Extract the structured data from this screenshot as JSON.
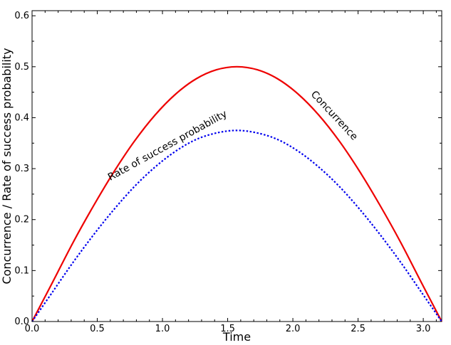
{
  "chart_data": {
    "type": "line",
    "title": "",
    "xlabel": "Time",
    "ylabel": "Concurrence / Rate of success probability",
    "xlim": [
      0,
      3.14159
    ],
    "ylim": [
      0,
      0.61
    ],
    "xticks": [
      "0.0",
      "0.5",
      "1.0",
      "1.5",
      "2.0",
      "2.5",
      "3.0"
    ],
    "yticks": [
      "0.0",
      "0.1",
      "0.2",
      "0.3",
      "0.4",
      "0.5",
      "0.6"
    ],
    "grid": false,
    "legend": "none",
    "series": [
      {
        "name": "Concurrence",
        "color": "#ee0000",
        "style": "solid",
        "x": [
          0,
          0.1571,
          0.3142,
          0.4712,
          0.6283,
          0.7854,
          0.9425,
          1.0996,
          1.2566,
          1.4137,
          1.5708,
          1.7279,
          1.885,
          2.042,
          2.1991,
          2.3562,
          2.5133,
          2.6704,
          2.8274,
          2.9845,
          3.1416
        ],
        "values": [
          0,
          0.077,
          0.155,
          0.227,
          0.294,
          0.354,
          0.405,
          0.446,
          0.476,
          0.494,
          0.5,
          0.494,
          0.476,
          0.446,
          0.405,
          0.354,
          0.294,
          0.227,
          0.155,
          0.077,
          0
        ]
      },
      {
        "name": "Rate of success probability",
        "color": "#0000ee",
        "style": "dotted",
        "x": [
          0,
          0.1571,
          0.3142,
          0.4712,
          0.6283,
          0.7854,
          0.9425,
          1.0996,
          1.2566,
          1.4137,
          1.5708,
          1.7279,
          1.885,
          2.042,
          2.1991,
          2.3562,
          2.5133,
          2.6704,
          2.8274,
          2.9845,
          3.1416
        ],
        "values": [
          0,
          0.058,
          0.116,
          0.17,
          0.22,
          0.265,
          0.303,
          0.334,
          0.357,
          0.37,
          0.375,
          0.37,
          0.357,
          0.334,
          0.303,
          0.265,
          0.22,
          0.17,
          0.116,
          0.058,
          0
        ]
      }
    ],
    "annotations": [
      {
        "text": "Concurrence",
        "x": 2.3,
        "y": 0.4,
        "angle": 47
      },
      {
        "text": "Rate of success probability",
        "x": 1.05,
        "y": 0.34,
        "angle": -29
      }
    ]
  }
}
